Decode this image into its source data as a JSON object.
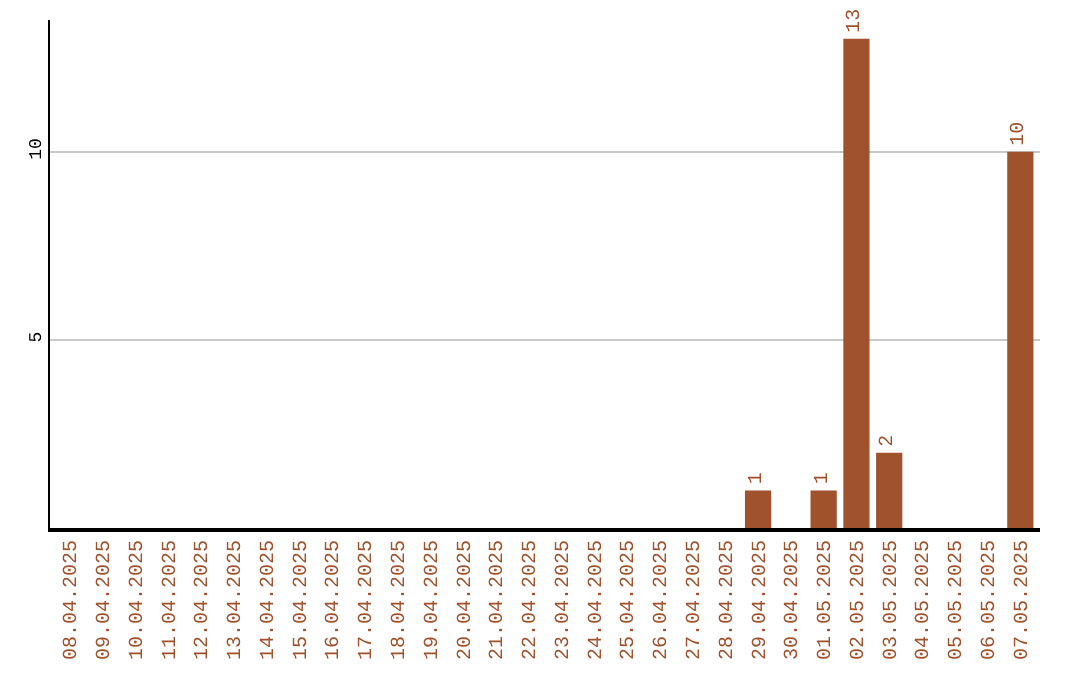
{
  "chart_data": {
    "type": "bar",
    "categories": [
      "08.04.2025",
      "09.04.2025",
      "10.04.2025",
      "11.04.2025",
      "12.04.2025",
      "13.04.2025",
      "14.04.2025",
      "15.04.2025",
      "16.04.2025",
      "17.04.2025",
      "18.04.2025",
      "19.04.2025",
      "20.04.2025",
      "21.04.2025",
      "22.04.2025",
      "23.04.2025",
      "24.04.2025",
      "25.04.2025",
      "26.04.2025",
      "27.04.2025",
      "28.04.2025",
      "29.04.2025",
      "30.04.2025",
      "01.05.2025",
      "02.05.2025",
      "03.05.2025",
      "04.05.2025",
      "05.05.2025",
      "06.05.2025",
      "07.05.2025"
    ],
    "values": [
      0,
      0,
      0,
      0,
      0,
      0,
      0,
      0,
      0,
      0,
      0,
      0,
      0,
      0,
      0,
      0,
      0,
      0,
      0,
      0,
      0,
      1,
      0,
      1,
      13,
      2,
      0,
      0,
      0,
      10
    ],
    "value_labels": [
      null,
      null,
      null,
      null,
      null,
      null,
      null,
      null,
      null,
      null,
      null,
      null,
      null,
      null,
      null,
      null,
      null,
      null,
      null,
      null,
      null,
      "1",
      null,
      "1",
      "13",
      "2",
      null,
      null,
      null,
      "10"
    ],
    "color": "#a0522d",
    "ylim": [
      0,
      13.5
    ],
    "yticks": [
      5,
      10
    ],
    "grid": "y",
    "legend": false
  }
}
